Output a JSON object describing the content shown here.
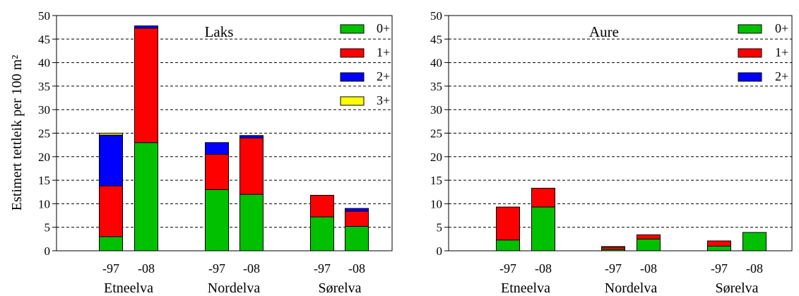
{
  "ylabel": "Estimert tettleik per 100 m²",
  "chart_data": [
    {
      "type": "bar",
      "stacked": true,
      "title": "Laks",
      "ylabel": "Estimert tettleik per 100 m²",
      "ylim": [
        0,
        50
      ],
      "yticks": [
        "0",
        "5",
        "10",
        "15",
        "20",
        "25",
        "30",
        "35",
        "40",
        "45",
        "50"
      ],
      "grid": true,
      "legend": "top-right",
      "groups": [
        "Etneelva",
        "Nordelva",
        "Sørelva"
      ],
      "categories": [
        "-97",
        "-08",
        "-97",
        "-08",
        "-97",
        "-08"
      ],
      "series": [
        {
          "name": "0+",
          "color": "#00c000",
          "values": [
            3,
            23,
            13,
            12,
            7.2,
            5.2
          ]
        },
        {
          "name": "1+",
          "color": "#ff0000",
          "values": [
            10.8,
            24.3,
            7.5,
            12,
            4.6,
            3.2
          ]
        },
        {
          "name": "2+",
          "color": "#0000ff",
          "values": [
            10.8,
            0.5,
            2.5,
            0.5,
            0,
            0.6
          ]
        },
        {
          "name": "3+",
          "color": "#ffff00",
          "values": [
            0.4,
            0,
            0,
            0,
            0,
            0
          ]
        }
      ]
    },
    {
      "type": "bar",
      "stacked": true,
      "title": "Aure",
      "ylim": [
        0,
        50
      ],
      "yticks": [
        "0",
        "5",
        "10",
        "15",
        "20",
        "25",
        "30",
        "35",
        "40",
        "45",
        "50"
      ],
      "grid": true,
      "legend": "top-right",
      "groups": [
        "Etneelva",
        "Nordelva",
        "Sørelva"
      ],
      "categories": [
        "-97",
        "-08",
        "-97",
        "-08",
        "-97",
        "-08"
      ],
      "series": [
        {
          "name": "0+",
          "color": "#00c000",
          "values": [
            2.3,
            9.3,
            0.3,
            2.5,
            1,
            3.9
          ]
        },
        {
          "name": "1+",
          "color": "#ff0000",
          "values": [
            7,
            4,
            0.5,
            0.9,
            1.1,
            0
          ]
        },
        {
          "name": "2+",
          "color": "#0000ff",
          "values": [
            0,
            0,
            0.1,
            0,
            0,
            0
          ]
        }
      ]
    }
  ]
}
